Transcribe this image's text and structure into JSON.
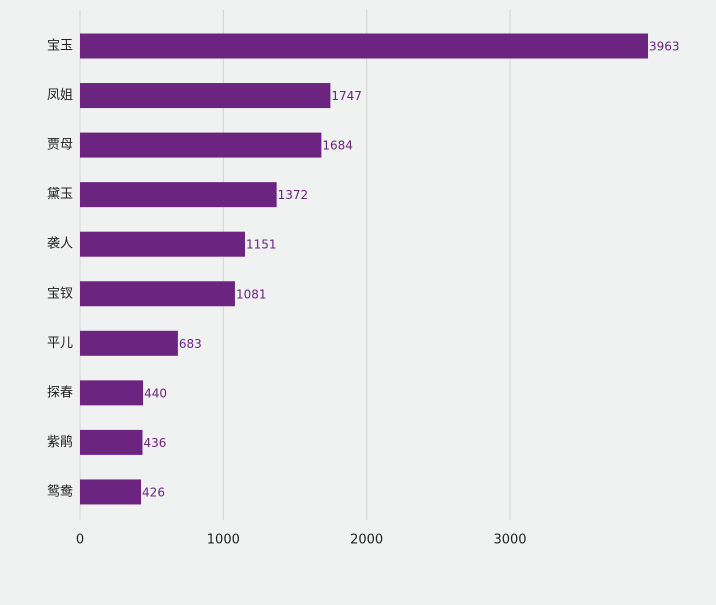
{
  "chart_data": {
    "type": "bar",
    "orientation": "horizontal",
    "categories": [
      "宝玉",
      "凤姐",
      "贾母",
      "黛玉",
      "袭人",
      "宝钗",
      "平儿",
      "探春",
      "紫鹃",
      "鸳鸯"
    ],
    "values": [
      3963,
      1747,
      1684,
      1372,
      1151,
      1081,
      683,
      440,
      436,
      426
    ],
    "x_ticks": [
      0,
      1000,
      2000,
      3000
    ],
    "xlim": [
      0,
      4000
    ],
    "grid": true,
    "data_labels": true,
    "bar_color": "#6b2480",
    "label_color": "#6b2480",
    "grid_color": "#d4d4d4",
    "background": "#f0f1f1"
  }
}
